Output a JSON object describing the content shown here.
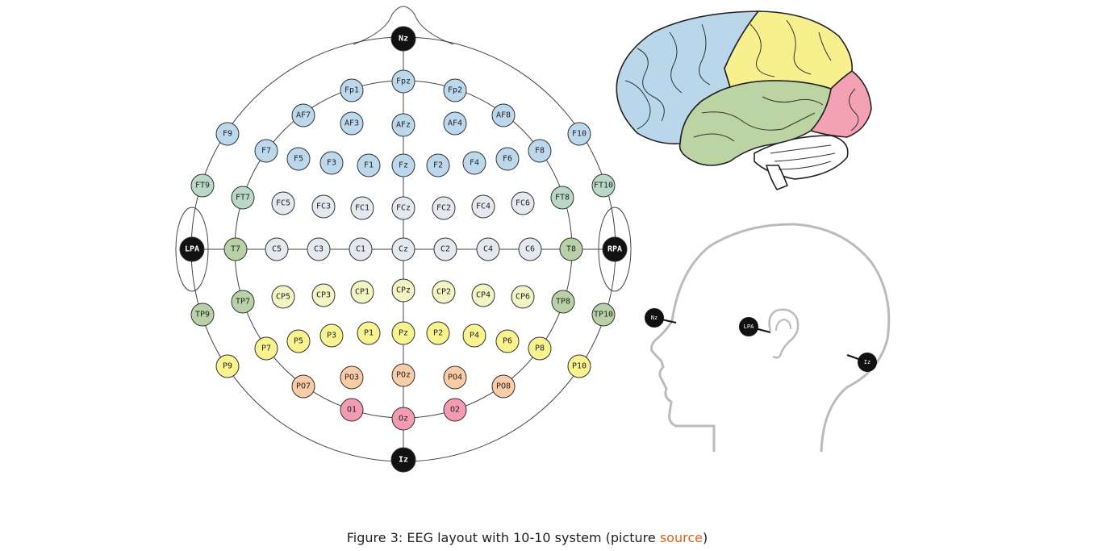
{
  "caption": {
    "prefix": "Figure 3: EEG layout with 10-10 system (picture ",
    "link": "source",
    "suffix": ")"
  },
  "colors": {
    "frontal": "#bcd8ec",
    "frontotemporal": "#b9d8c6",
    "central": "#e4e8ef",
    "temporal": "#b9d1a6",
    "parietal_central": "#f2f4c4",
    "parietal": "#f8f38e",
    "parieto_occipital": "#f9cba6",
    "occipital": "#f49bb4",
    "reference": "#111111"
  },
  "electrodes": [
    {
      "label": "Nz",
      "group": "reference"
    },
    {
      "label": "Fp1",
      "group": "frontal"
    },
    {
      "label": "Fpz",
      "group": "frontal"
    },
    {
      "label": "Fp2",
      "group": "frontal"
    },
    {
      "label": "AF7",
      "group": "frontal"
    },
    {
      "label": "AF3",
      "group": "frontal"
    },
    {
      "label": "AFz",
      "group": "frontal"
    },
    {
      "label": "AF4",
      "group": "frontal"
    },
    {
      "label": "AF8",
      "group": "frontal"
    },
    {
      "label": "F9",
      "group": "frontal"
    },
    {
      "label": "F10",
      "group": "frontal"
    },
    {
      "label": "F7",
      "group": "frontal"
    },
    {
      "label": "F5",
      "group": "frontal"
    },
    {
      "label": "F3",
      "group": "frontal"
    },
    {
      "label": "F1",
      "group": "frontal"
    },
    {
      "label": "Fz",
      "group": "frontal"
    },
    {
      "label": "F2",
      "group": "frontal"
    },
    {
      "label": "F4",
      "group": "frontal"
    },
    {
      "label": "F6",
      "group": "frontal"
    },
    {
      "label": "F8",
      "group": "frontal"
    },
    {
      "label": "FT9",
      "group": "frontotemporal"
    },
    {
      "label": "FT10",
      "group": "frontotemporal"
    },
    {
      "label": "FT7",
      "group": "frontotemporal"
    },
    {
      "label": "FT8",
      "group": "frontotemporal"
    },
    {
      "label": "FC5",
      "group": "central"
    },
    {
      "label": "FC3",
      "group": "central"
    },
    {
      "label": "FC1",
      "group": "central"
    },
    {
      "label": "FCz",
      "group": "central"
    },
    {
      "label": "FC2",
      "group": "central"
    },
    {
      "label": "FC4",
      "group": "central"
    },
    {
      "label": "FC6",
      "group": "central"
    },
    {
      "label": "LPA",
      "group": "reference"
    },
    {
      "label": "T7",
      "group": "temporal"
    },
    {
      "label": "C5",
      "group": "central"
    },
    {
      "label": "C3",
      "group": "central"
    },
    {
      "label": "C1",
      "group": "central"
    },
    {
      "label": "Cz",
      "group": "central"
    },
    {
      "label": "C2",
      "group": "central"
    },
    {
      "label": "C4",
      "group": "central"
    },
    {
      "label": "C6",
      "group": "central"
    },
    {
      "label": "T8",
      "group": "temporal"
    },
    {
      "label": "RPA",
      "group": "reference"
    },
    {
      "label": "TP7",
      "group": "temporal"
    },
    {
      "label": "TP8",
      "group": "temporal"
    },
    {
      "label": "TP9",
      "group": "temporal"
    },
    {
      "label": "TP10",
      "group": "temporal"
    },
    {
      "label": "CP5",
      "group": "parietal_central"
    },
    {
      "label": "CP3",
      "group": "parietal_central"
    },
    {
      "label": "CP1",
      "group": "parietal_central"
    },
    {
      "label": "CPz",
      "group": "parietal_central"
    },
    {
      "label": "CP2",
      "group": "parietal_central"
    },
    {
      "label": "CP4",
      "group": "parietal_central"
    },
    {
      "label": "CP6",
      "group": "parietal_central"
    },
    {
      "label": "P9",
      "group": "parietal"
    },
    {
      "label": "P10",
      "group": "parietal"
    },
    {
      "label": "P7",
      "group": "parietal"
    },
    {
      "label": "P5",
      "group": "parietal"
    },
    {
      "label": "P3",
      "group": "parietal"
    },
    {
      "label": "P1",
      "group": "parietal"
    },
    {
      "label": "Pz",
      "group": "parietal"
    },
    {
      "label": "P2",
      "group": "parietal"
    },
    {
      "label": "P4",
      "group": "parietal"
    },
    {
      "label": "P6",
      "group": "parietal"
    },
    {
      "label": "P8",
      "group": "parietal"
    },
    {
      "label": "PO7",
      "group": "parieto_occipital"
    },
    {
      "label": "PO3",
      "group": "parieto_occipital"
    },
    {
      "label": "POz",
      "group": "parieto_occipital"
    },
    {
      "label": "PO4",
      "group": "parieto_occipital"
    },
    {
      "label": "PO8",
      "group": "parieto_occipital"
    },
    {
      "label": "O1",
      "group": "occipital"
    },
    {
      "label": "Oz",
      "group": "occipital"
    },
    {
      "label": "O2",
      "group": "occipital"
    },
    {
      "label": "Iz",
      "group": "reference"
    }
  ],
  "brain": {
    "lobe_colors": {
      "frontal": "#b9d6ea",
      "parietal": "#f8f08f",
      "occipital": "#f2a2b3",
      "temporal": "#bcd3a3",
      "cerebellum": "#ffffff"
    }
  },
  "head_profile": {
    "markers": [
      {
        "label": "Nz"
      },
      {
        "label": "LPA"
      },
      {
        "label": "Iz"
      }
    ]
  }
}
